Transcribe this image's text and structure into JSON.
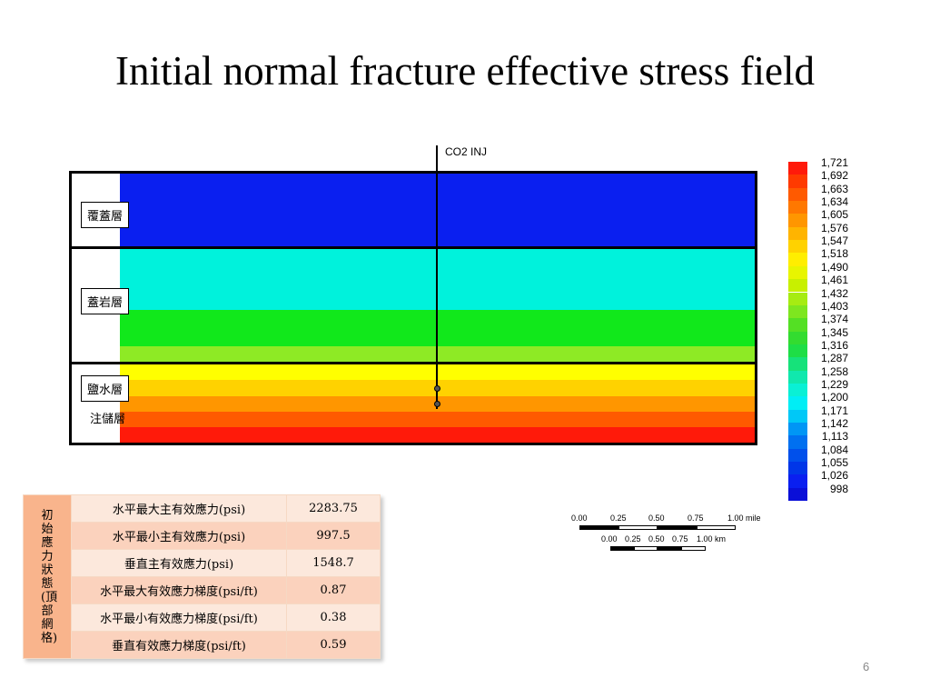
{
  "slide": {
    "title": "Initial normal fracture effective stress field",
    "page_number": "6"
  },
  "model": {
    "well_label": "CO2 INJ",
    "layers": {
      "caprock_cover": "覆蓋層",
      "caprock": "蓋岩層",
      "aquifer": "鹽水層",
      "storage": "注儲層"
    },
    "band_colors": [
      "#0a1ff0",
      "#00f2dc",
      "#11e81b",
      "#8eea25",
      "#ffff00",
      "#ffd200",
      "#ff9600",
      "#ff5a00",
      "#ff1a0a"
    ]
  },
  "legend": {
    "values": [
      "1,721",
      "1,692",
      "1,663",
      "1,634",
      "1,605",
      "1,576",
      "1,547",
      "1,518",
      "1,490",
      "1,461",
      "1,432",
      "1,403",
      "1,374",
      "1,345",
      "1,316",
      "1,287",
      "1,258",
      "1,229",
      "1,200",
      "1,171",
      "1,142",
      "1,113",
      "1,084",
      "1,055",
      "1,026",
      "998"
    ],
    "colors": [
      "#ff1a0a",
      "#ff3a00",
      "#ff5a00",
      "#ff7800",
      "#ff9600",
      "#ffb400",
      "#ffd200",
      "#ffee00",
      "#e8f500",
      "#c8f000",
      "#a6ec12",
      "#7ee61f",
      "#54e024",
      "#33dc30",
      "#1ede46",
      "#16e27a",
      "#10e8ad",
      "#0af0d5",
      "#00eef5",
      "#00c8f7",
      "#0096f5",
      "#0070f0",
      "#0050eb",
      "#0036e8",
      "#0a1ff0",
      "#0a0fd8"
    ]
  },
  "table": {
    "header": "初始應力狀態(頂部網格)",
    "rows": [
      {
        "label": "水平最大主有效應力(psi)",
        "value": "2283.75"
      },
      {
        "label": "水平最小主有效應力(psi)",
        "value": "997.5"
      },
      {
        "label": "垂直主有效應力(psi)",
        "value": "1548.7"
      },
      {
        "label": "水平最大有效應力梯度(psi/ft)",
        "value": "0.87"
      },
      {
        "label": "水平最小有效應力梯度(psi/ft)",
        "value": "0.38"
      },
      {
        "label": "垂直有效應力梯度(psi/ft)",
        "value": "0.59"
      }
    ]
  },
  "scale_bar": {
    "mile_ticks": [
      "0.00",
      "0.25",
      "0.50",
      "0.75",
      "1.00 mile"
    ],
    "km_ticks": [
      "0.00",
      "0.25",
      "0.50",
      "0.75",
      "1.00 km"
    ]
  }
}
